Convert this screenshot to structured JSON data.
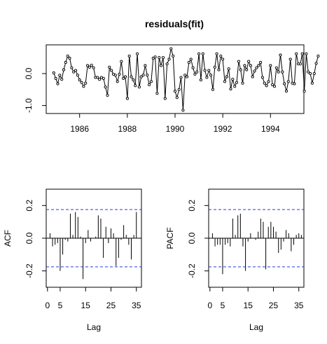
{
  "chart_data": [
    {
      "type": "line",
      "title": "residuals(fit)",
      "xlabel": "",
      "ylabel": "",
      "xlim": [
        1984.6,
        1995.4
      ],
      "ylim": [
        -1.25,
        0.9
      ],
      "xticks": [
        1986,
        1988,
        1990,
        1992,
        1994
      ],
      "xtick_labels": [
        "1986",
        "1988",
        "1990",
        "1992",
        "1994"
      ],
      "yticks": [
        -1.0,
        0.0
      ],
      "ytick_labels": [
        "-1.0",
        "0.0"
      ],
      "grid": false,
      "x_start": 1984.917,
      "x_step": 0.08333,
      "values": [
        0.02,
        -0.15,
        -0.32,
        -0.05,
        -0.18,
        0.12,
        0.35,
        0.55,
        0.48,
        0.18,
        0.05,
        0.1,
        -0.05,
        -0.2,
        -0.28,
        -0.4,
        -0.3,
        0.25,
        0.2,
        0.26,
        0.18,
        -0.12,
        -0.12,
        -0.18,
        -0.12,
        -0.15,
        -0.42,
        -0.68,
        0.2,
        0.1,
        -0.02,
        -0.05,
        -0.25,
        -0.02,
        0.38,
        -0.15,
        -0.1,
        -0.78,
        0.55,
        -0.1,
        -0.2,
        -0.38,
        0.62,
        -0.42,
        -0.1,
        -0.05,
        0.25,
        -0.05,
        -0.35,
        -0.25,
        0.48,
        0.52,
        -0.62,
        0.5,
        0.25,
        0.5,
        -0.78,
        0.3,
        0.45,
        0.78,
        0.55,
        -0.55,
        -0.75,
        -0.5,
        -0.12,
        -1.15,
        -0.05,
        -0.1,
        0.35,
        0.45,
        0.18,
        -0.02,
        0.05,
        0.62,
        -0.2,
        0.62,
        0.1,
        -0.12,
        0.1,
        -0.05,
        -0.5,
        0.2,
        0.62,
        0.12,
        0.55,
        0.45,
        -0.25,
        -0.1,
        0.15,
        -0.48,
        -0.18,
        -0.4,
        -0.28,
        0.38,
        0.12,
        -0.3,
        0.25,
        0.12,
        0.38,
        0.25,
        -0.1,
        0.08,
        0.18,
        0.25,
        0.35,
        -0.12,
        -0.3,
        -0.38,
        -0.25,
        0.25,
        -0.35,
        -0.4,
        0.18,
        0.05,
        0.58,
        0.05,
        -0.32,
        -0.55,
        -0.25,
        0.45,
        -0.3,
        -0.32,
        0.62,
        0.3,
        0.3,
        0.62,
        -0.55,
        0.62,
        0.05,
        0.0,
        -0.3,
        0.0,
        0.32,
        0.55
      ]
    },
    {
      "type": "bar",
      "title": "",
      "xlabel": "Lag",
      "ylabel": "ACF",
      "xlim": [
        -0.5,
        37
      ],
      "ylim": [
        -0.3,
        0.3
      ],
      "xticks": [
        0,
        5,
        15,
        25,
        35
      ],
      "xtick_labels": [
        "0",
        "5",
        "15",
        "25",
        "35"
      ],
      "yticks": [
        -0.2,
        0.0,
        0.2
      ],
      "ytick_labels": [
        "-0.2",
        "0.0",
        "0.2"
      ],
      "ci": 0.175,
      "lags": [
        1,
        2,
        3,
        4,
        5,
        6,
        7,
        8,
        9,
        10,
        11,
        12,
        13,
        14,
        15,
        16,
        17,
        18,
        19,
        20,
        21,
        22,
        23,
        24,
        25,
        26,
        27,
        28,
        29,
        30,
        31,
        32,
        33,
        34,
        35,
        36
      ],
      "values": [
        0.03,
        -0.05,
        -0.04,
        -0.03,
        -0.2,
        -0.1,
        -0.01,
        -0.02,
        0.15,
        0.02,
        0.16,
        0.13,
        0.01,
        -0.25,
        -0.03,
        0.05,
        -0.02,
        0.0,
        0.01,
        0.14,
        0.12,
        -0.12,
        0.07,
        -0.03,
        0.06,
        0.03,
        -0.17,
        -0.12,
        -0.01,
        0.08,
        0.02,
        -0.04,
        -0.13,
        0.02,
        0.16,
        0.0
      ]
    },
    {
      "type": "bar",
      "title": "",
      "xlabel": "Lag",
      "ylabel": "PACF",
      "xlim": [
        -0.5,
        37
      ],
      "ylim": [
        -0.3,
        0.3
      ],
      "xticks": [
        0,
        5,
        15,
        25,
        35
      ],
      "xtick_labels": [
        "0",
        "5",
        "15",
        "25",
        "35"
      ],
      "yticks": [
        -0.2,
        0.0,
        0.2
      ],
      "ytick_labels": [
        "-0.2",
        "0.0",
        "0.2"
      ],
      "ci": 0.175,
      "lags": [
        1,
        2,
        3,
        4,
        5,
        6,
        7,
        8,
        9,
        10,
        11,
        12,
        13,
        14,
        15,
        16,
        17,
        18,
        19,
        20,
        21,
        22,
        23,
        24,
        25,
        26,
        27,
        28,
        29,
        30,
        31,
        32,
        33,
        34,
        35,
        36
      ],
      "values": [
        0.03,
        -0.05,
        -0.04,
        -0.04,
        -0.22,
        -0.04,
        -0.03,
        -0.05,
        0.12,
        0.02,
        0.14,
        0.15,
        -0.05,
        -0.2,
        -0.02,
        0.03,
        0.0,
        -0.01,
        0.04,
        0.12,
        0.1,
        -0.19,
        0.07,
        0.1,
        0.07,
        0.04,
        -0.09,
        -0.07,
        -0.02,
        0.05,
        0.03,
        -0.08,
        -0.04,
        0.02,
        0.03,
        0.02
      ]
    }
  ]
}
